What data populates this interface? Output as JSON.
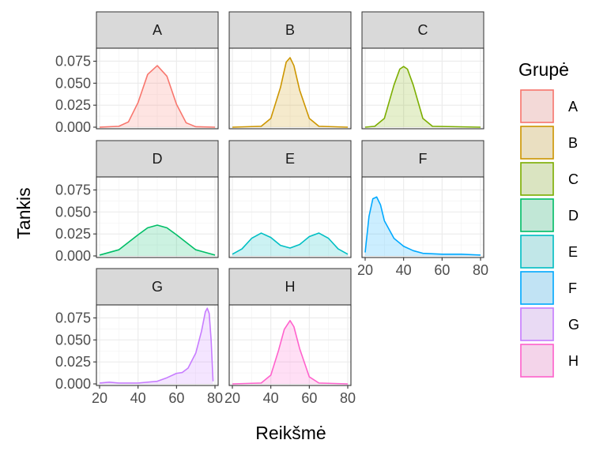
{
  "chart_data": {
    "type": "area",
    "subtype": "faceted density",
    "xlabel": "Reikšmė",
    "ylabel": "Tankis",
    "xlim": [
      20,
      80
    ],
    "ylim": [
      0,
      0.088
    ],
    "x_ticks": [
      20,
      40,
      60,
      80
    ],
    "y_ticks": [
      "0.000",
      "0.025",
      "0.050",
      "0.075"
    ],
    "grid": true,
    "legend": {
      "title": "Grupė",
      "position": "right"
    },
    "facets": [
      {
        "name": "A",
        "color": "#F8766D",
        "x": [
          20,
          30,
          35,
          40,
          45,
          50,
          55,
          60,
          65,
          70,
          80
        ],
        "y": [
          0,
          0.001,
          0.006,
          0.028,
          0.06,
          0.07,
          0.058,
          0.026,
          0.005,
          0.0005,
          0
        ]
      },
      {
        "name": "B",
        "color": "#CD9600",
        "x": [
          20,
          35,
          40,
          45,
          48,
          50,
          52,
          55,
          60,
          65,
          80
        ],
        "y": [
          0,
          0.001,
          0.01,
          0.045,
          0.074,
          0.079,
          0.07,
          0.042,
          0.01,
          0.001,
          0
        ]
      },
      {
        "name": "C",
        "color": "#7CAE00",
        "x": [
          20,
          25,
          30,
          35,
          38,
          40,
          42,
          45,
          50,
          55,
          80
        ],
        "y": [
          0,
          0.001,
          0.01,
          0.048,
          0.066,
          0.069,
          0.066,
          0.048,
          0.01,
          0.001,
          0
        ]
      },
      {
        "name": "D",
        "color": "#00BE67",
        "x": [
          20,
          30,
          40,
          45,
          50,
          55,
          60,
          70,
          80
        ],
        "y": [
          0.001,
          0.007,
          0.024,
          0.032,
          0.035,
          0.032,
          0.024,
          0.007,
          0.001
        ]
      },
      {
        "name": "E",
        "color": "#00BFC4",
        "x": [
          20,
          25,
          30,
          35,
          40,
          45,
          50,
          55,
          60,
          65,
          70,
          75,
          80
        ],
        "y": [
          0.002,
          0.008,
          0.02,
          0.026,
          0.021,
          0.012,
          0.009,
          0.013,
          0.022,
          0.026,
          0.02,
          0.008,
          0.002
        ]
      },
      {
        "name": "F",
        "color": "#00A9FF",
        "x": [
          20,
          22,
          24,
          26,
          28,
          30,
          35,
          40,
          45,
          50,
          60,
          70,
          80
        ],
        "y": [
          0.004,
          0.045,
          0.065,
          0.067,
          0.058,
          0.04,
          0.02,
          0.011,
          0.006,
          0.003,
          0.002,
          0.002,
          0.001
        ]
      },
      {
        "name": "G",
        "color": "#C77CFF",
        "x": [
          20,
          25,
          30,
          40,
          50,
          55,
          60,
          63,
          66,
          70,
          73,
          75,
          76,
          77,
          78,
          79
        ],
        "y": [
          0.001,
          0.002,
          0.001,
          0.001,
          0.003,
          0.007,
          0.012,
          0.013,
          0.018,
          0.035,
          0.06,
          0.082,
          0.086,
          0.08,
          0.05,
          0.003
        ]
      },
      {
        "name": "H",
        "color": "#FF61CC",
        "x": [
          20,
          35,
          40,
          44,
          47,
          50,
          52,
          55,
          60,
          65,
          80
        ],
        "y": [
          0,
          0.001,
          0.01,
          0.038,
          0.062,
          0.072,
          0.065,
          0.04,
          0.008,
          0.001,
          0
        ]
      }
    ]
  }
}
